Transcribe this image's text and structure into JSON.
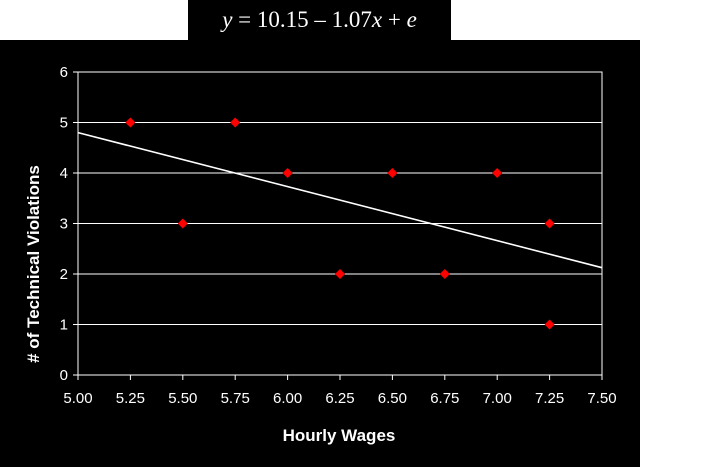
{
  "equation": {
    "y": "y",
    "mid": " = 10.15 – 1.07",
    "x": "x",
    "tail": " + ",
    "e": "e"
  },
  "colors": {
    "background": "#000000",
    "foreground": "#ffffff",
    "marker": "#ff0000",
    "regression_line": "#ffffff"
  },
  "chart_data": {
    "type": "scatter",
    "title": "",
    "xlabel": "Hourly Wages",
    "ylabel": "# of Technical Violations",
    "xlim": [
      5.0,
      7.5
    ],
    "ylim": [
      0,
      6
    ],
    "x_ticks": [
      "5.00",
      "5.25",
      "5.50",
      "5.75",
      "6.00",
      "6.25",
      "6.50",
      "6.75",
      "7.00",
      "7.25",
      "7.50"
    ],
    "y_ticks": [
      "0",
      "1",
      "2",
      "3",
      "4",
      "5",
      "6"
    ],
    "grid": "horizontal",
    "marker": "diamond",
    "points": [
      {
        "x": 5.25,
        "y": 5
      },
      {
        "x": 5.5,
        "y": 3
      },
      {
        "x": 5.75,
        "y": 5
      },
      {
        "x": 6.0,
        "y": 4
      },
      {
        "x": 6.25,
        "y": 2
      },
      {
        "x": 6.5,
        "y": 4
      },
      {
        "x": 6.75,
        "y": 2
      },
      {
        "x": 7.0,
        "y": 4
      },
      {
        "x": 7.25,
        "y": 3
      },
      {
        "x": 7.25,
        "y": 1
      }
    ],
    "trendline": {
      "intercept": 10.15,
      "slope": -1.07,
      "x_range": [
        5.0,
        7.5
      ]
    }
  }
}
